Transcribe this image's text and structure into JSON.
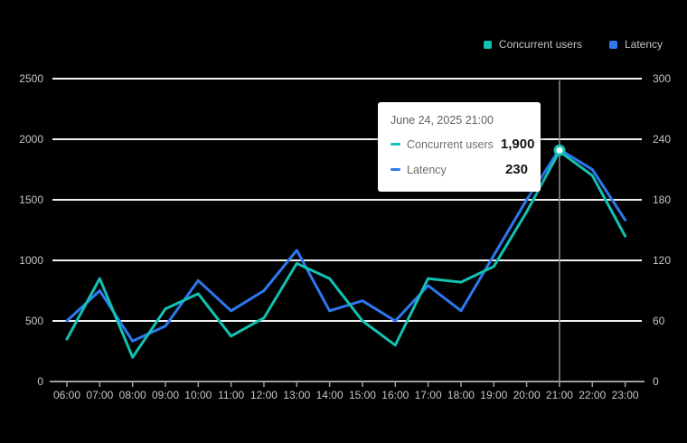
{
  "colors": {
    "background": "#000000",
    "gridline": "#f2f2f2",
    "axis_line": "#9c9c9c",
    "tick_label": "#c6c6c6",
    "crosshair": "#8f8f8f",
    "concurrent_users": "#12c2b2",
    "latency": "#2e78f0",
    "marker_fill": "#ffffff"
  },
  "legend": {
    "items": [
      {
        "label": "Concurrent users",
        "color": "#12c2b2"
      },
      {
        "label": "Latency",
        "color": "#2e78f0"
      }
    ]
  },
  "tooltip": {
    "title": "June 24, 2025 21:00",
    "rows": [
      {
        "label": "Concurrent users",
        "value": "1,900",
        "color": "#12c2b2"
      },
      {
        "label": "Latency",
        "value": "230",
        "color": "#2e78f0"
      }
    ]
  },
  "chart_data": {
    "type": "line",
    "x": [
      "06:00",
      "07:00",
      "08:00",
      "09:00",
      "10:00",
      "11:00",
      "12:00",
      "13:00",
      "14:00",
      "15:00",
      "16:00",
      "17:00",
      "18:00",
      "19:00",
      "20:00",
      "21:00",
      "22:00",
      "23:00"
    ],
    "series": [
      {
        "name": "Concurrent users",
        "axis": "left",
        "color": "#12c2b2",
        "values": [
          350,
          850,
          200,
          600,
          725,
          375,
          525,
          975,
          850,
          500,
          300,
          850,
          820,
          950,
          1400,
          1900,
          1700,
          1200
        ]
      },
      {
        "name": "Latency",
        "axis": "right",
        "color": "#2e78f0",
        "values": [
          60,
          90,
          40,
          55,
          100,
          70,
          90,
          130,
          70,
          80,
          60,
          95,
          70,
          125,
          180,
          230,
          210,
          160
        ]
      }
    ],
    "left_axis": {
      "min": 0,
      "max": 2500,
      "ticks": [
        0,
        500,
        1000,
        1500,
        2000,
        2500
      ],
      "tick_labels": [
        "0",
        "500",
        "1000",
        "1500",
        "2000",
        "2500"
      ]
    },
    "right_axis": {
      "min": 0,
      "max": 300,
      "ticks": [
        0,
        60,
        120,
        180,
        240,
        300
      ],
      "tick_labels": [
        "0",
        "60",
        "120",
        "180",
        "240",
        "300"
      ]
    },
    "highlight": {
      "x": "21:00",
      "index": 15,
      "concurrent_users": 1900,
      "latency": 230
    },
    "grid": true,
    "legend_position": "top-right"
  }
}
